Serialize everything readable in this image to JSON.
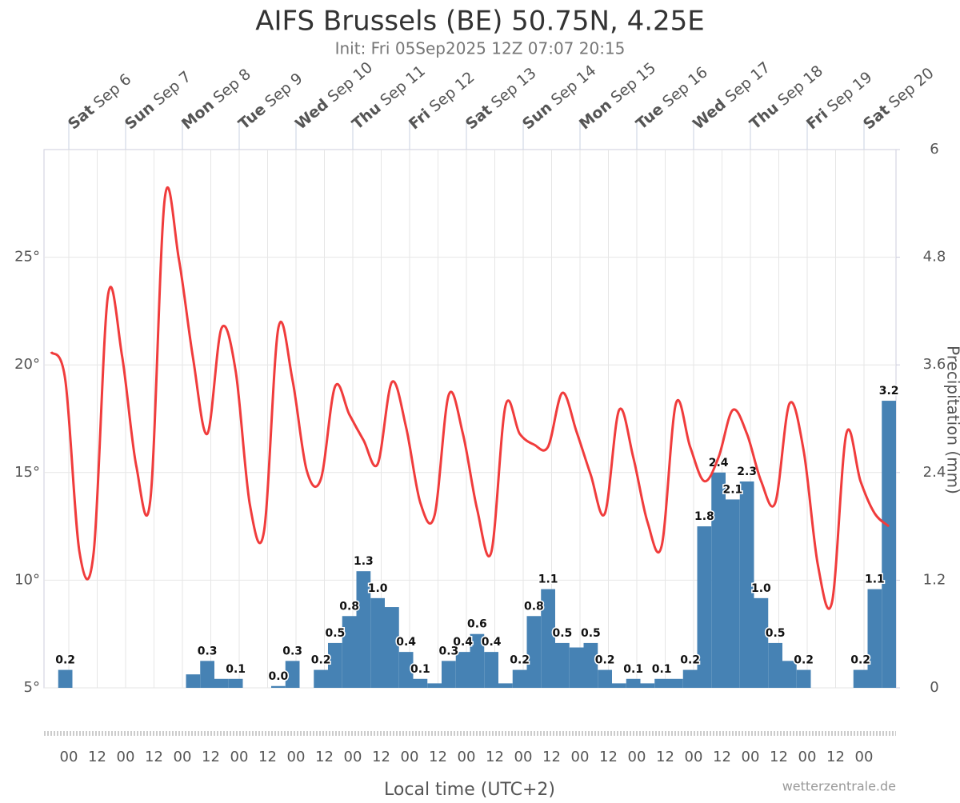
{
  "chart_data": {
    "type": "bar",
    "title": "AIFS Brussels (BE) 50.75N, 4.25E",
    "subtitle": "Init: Fri  05Sep2025 12Z 07:07 20:15",
    "xlabel": "Local time (UTC+2)",
    "y2label": "Precipitation (mm)",
    "credit": "wetterzentrale.de",
    "day_labels": [
      {
        "weekday": "Sat",
        "date": "Sep 6"
      },
      {
        "weekday": "Sun",
        "date": "Sep 7"
      },
      {
        "weekday": "Mon",
        "date": "Sep 8"
      },
      {
        "weekday": "Tue",
        "date": "Sep 9"
      },
      {
        "weekday": "Wed",
        "date": "Sep 10"
      },
      {
        "weekday": "Thu",
        "date": "Sep 11"
      },
      {
        "weekday": "Fri",
        "date": "Sep 12"
      },
      {
        "weekday": "Sat",
        "date": "Sep 13"
      },
      {
        "weekday": "Sun",
        "date": "Sep 14"
      },
      {
        "weekday": "Mon",
        "date": "Sep 15"
      },
      {
        "weekday": "Tue",
        "date": "Sep 16"
      },
      {
        "weekday": "Wed",
        "date": "Sep 17"
      },
      {
        "weekday": "Thu",
        "date": "Sep 18"
      },
      {
        "weekday": "Fri",
        "date": "Sep 19"
      },
      {
        "weekday": "Sat",
        "date": "Sep 20"
      }
    ],
    "hour_labels": [
      "00",
      "12",
      "00",
      "12",
      "00",
      "12",
      "00",
      "12",
      "00",
      "12",
      "00",
      "12",
      "00",
      "12",
      "00",
      "12",
      "00",
      "12",
      "00",
      "12",
      "00",
      "12",
      "00",
      "12",
      "00",
      "12",
      "00",
      "12",
      "00"
    ],
    "ylim": [
      5,
      30
    ],
    "yticks": [
      {
        "value": 5,
        "label": "5°"
      },
      {
        "value": 10,
        "label": "10°"
      },
      {
        "value": 15,
        "label": "15°"
      },
      {
        "value": 20,
        "label": "20°"
      },
      {
        "value": 25,
        "label": "25°"
      }
    ],
    "y2lim": [
      0,
      6
    ],
    "y2ticks": [
      0,
      1.2,
      2.4,
      3.6,
      4.8,
      6
    ],
    "grid": true,
    "series": [
      {
        "type": "bar",
        "axis": "y2",
        "color": "#4682b4",
        "values": [
          0,
          0.2,
          0,
          0,
          0,
          0,
          0,
          0,
          0,
          0,
          0.15,
          0.3,
          0.1,
          0.1,
          0,
          0,
          0.02,
          0.3,
          0,
          0.2,
          0.5,
          0.8,
          1.3,
          1.0,
          0.9,
          0.4,
          0.1,
          0.05,
          0.3,
          0.4,
          0.6,
          0.4,
          0.05,
          0.2,
          0.8,
          1.1,
          0.5,
          0.45,
          0.5,
          0.2,
          0.05,
          0.1,
          0.05,
          0.1,
          0.1,
          0.2,
          1.8,
          2.4,
          2.1,
          2.3,
          1.0,
          0.5,
          0.3,
          0.2,
          0,
          0,
          0,
          0.2,
          1.1,
          3.2
        ],
        "value_labels": [
          null,
          "0.2",
          null,
          null,
          null,
          null,
          null,
          null,
          null,
          null,
          null,
          "0.3",
          null,
          "0.1",
          null,
          null,
          "0.0",
          "0.3",
          null,
          "0.2",
          "0.5",
          "0.8",
          "1.3",
          "1.0",
          null,
          "0.4",
          "0.1",
          null,
          "0.3",
          "0.4",
          "0.6",
          "0.4",
          null,
          "0.2",
          "0.8",
          "1.1",
          "0.5",
          null,
          "0.5",
          "0.2",
          null,
          "0.1",
          null,
          "0.1",
          null,
          "0.2",
          "1.8",
          "2.4",
          "2.1",
          "2.3",
          "1.0",
          "0.5",
          null,
          "0.2",
          null,
          null,
          null,
          "0.2",
          "1.1",
          "3.2"
        ]
      },
      {
        "type": "line",
        "color": "#f03c3c",
        "values": [
          20.6,
          19.3,
          11.3,
          11.3,
          23.2,
          20.4,
          15.3,
          13.8,
          27.7,
          24.9,
          20.3,
          16.8,
          21.7,
          19.7,
          13.5,
          12.3,
          21.7,
          19.3,
          15.1,
          14.7,
          19.0,
          17.7,
          16.5,
          15.4,
          19.2,
          17.1,
          13.6,
          13.0,
          18.6,
          16.8,
          13.3,
          11.3,
          18.1,
          16.8,
          16.3,
          16.2,
          18.7,
          16.9,
          14.9,
          13.1,
          17.9,
          15.7,
          12.7,
          11.6,
          18.2,
          16.2,
          14.6,
          15.7,
          17.9,
          16.8,
          14.6,
          13.6,
          18.2,
          16.0,
          10.7,
          9.0,
          16.8,
          14.6,
          13.1,
          12.5
        ]
      }
    ]
  }
}
